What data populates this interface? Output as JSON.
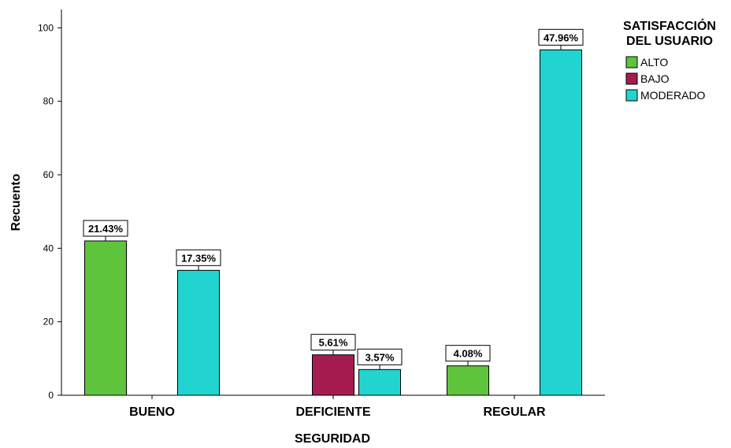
{
  "chart_data": {
    "type": "bar",
    "title": "",
    "xlabel": "SEGURIDAD",
    "ylabel": "Recuento",
    "ylim": [
      0,
      105
    ],
    "yticks": [
      0,
      20,
      40,
      60,
      80,
      100
    ],
    "grid": false,
    "legend": {
      "title_lines": [
        "SATISFACCIÓN",
        "DEL USUARIO"
      ],
      "position": "top-right"
    },
    "categories": [
      "BUENO",
      "DEFICIENTE",
      "REGULAR"
    ],
    "series": [
      {
        "name": "ALTO",
        "color": "#5ec43b",
        "values": [
          42,
          null,
          8
        ],
        "labels": [
          "21.43%",
          "",
          "4.08%"
        ]
      },
      {
        "name": "BAJO",
        "color": "#a51c50",
        "values": [
          null,
          11,
          null
        ],
        "labels": [
          "",
          "5.61%",
          ""
        ]
      },
      {
        "name": "MODERADO",
        "color": "#22d4d0",
        "values": [
          34,
          7,
          94
        ],
        "labels": [
          "17.35%",
          "3.57%",
          "47.96%"
        ]
      }
    ]
  }
}
